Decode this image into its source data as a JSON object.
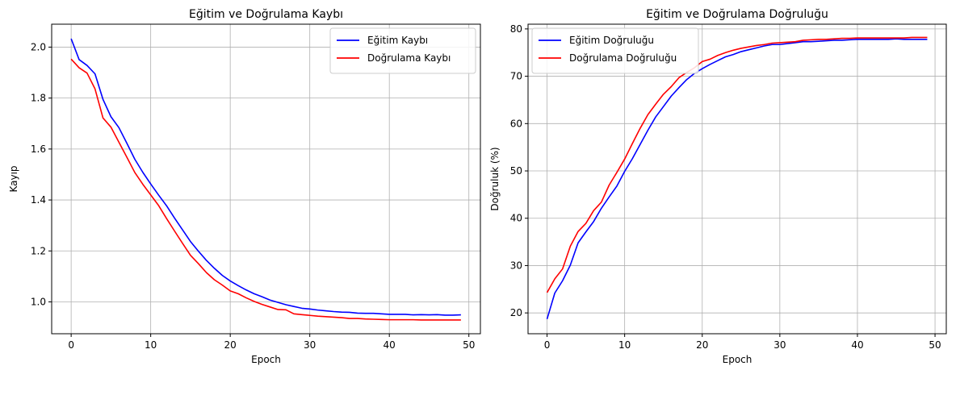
{
  "chart_data": [
    {
      "type": "line",
      "title": "Eğitim ve Doğrulama Kaybı",
      "xlabel": "Epoch",
      "ylabel": "Kayıp",
      "xlim": [
        -2.45,
        51.45
      ],
      "ylim": [
        0.875,
        2.09
      ],
      "xticks": [
        0,
        10,
        20,
        30,
        40,
        50
      ],
      "yticks": [
        1.0,
        1.2,
        1.4,
        1.6,
        1.8,
        2.0
      ],
      "ytick_labels": [
        "1.0",
        "1.2",
        "1.4",
        "1.6",
        "1.8",
        "2.0"
      ],
      "grid": true,
      "legend_position": "top-right",
      "x": [
        0,
        1,
        2,
        3,
        4,
        5,
        6,
        7,
        8,
        9,
        10,
        11,
        12,
        13,
        14,
        15,
        16,
        17,
        18,
        19,
        20,
        21,
        22,
        23,
        24,
        25,
        26,
        27,
        28,
        29,
        30,
        31,
        32,
        33,
        34,
        35,
        36,
        37,
        38,
        39,
        40,
        41,
        42,
        43,
        44,
        45,
        46,
        47,
        48,
        49
      ],
      "series": [
        {
          "name": "Eğitim Kaybı",
          "color": "#0000ff",
          "values": [
            2.033,
            1.951,
            1.928,
            1.895,
            1.795,
            1.727,
            1.684,
            1.623,
            1.56,
            1.509,
            1.463,
            1.419,
            1.377,
            1.329,
            1.283,
            1.237,
            1.199,
            1.163,
            1.132,
            1.104,
            1.082,
            1.064,
            1.047,
            1.032,
            1.02,
            1.007,
            0.998,
            0.989,
            0.982,
            0.975,
            0.972,
            0.968,
            0.965,
            0.962,
            0.96,
            0.959,
            0.956,
            0.955,
            0.955,
            0.953,
            0.951,
            0.951,
            0.951,
            0.949,
            0.95,
            0.949,
            0.95,
            0.948,
            0.948,
            0.949
          ]
        },
        {
          "name": "Doğrulama Kaybı",
          "color": "#ff0000",
          "values": [
            1.953,
            1.919,
            1.898,
            1.836,
            1.722,
            1.686,
            1.627,
            1.568,
            1.508,
            1.462,
            1.42,
            1.378,
            1.327,
            1.278,
            1.23,
            1.183,
            1.15,
            1.115,
            1.087,
            1.066,
            1.043,
            1.032,
            1.016,
            1.002,
            0.99,
            0.98,
            0.97,
            0.969,
            0.953,
            0.95,
            0.947,
            0.944,
            0.942,
            0.94,
            0.938,
            0.935,
            0.935,
            0.933,
            0.932,
            0.931,
            0.93,
            0.93,
            0.93,
            0.93,
            0.929,
            0.929,
            0.929,
            0.929,
            0.929,
            0.929
          ]
        }
      ]
    },
    {
      "type": "line",
      "title": "Eğitim ve Doğrulama Doğruluğu",
      "xlabel": "Epoch",
      "ylabel": "Doğruluk (%)",
      "xlim": [
        -2.45,
        51.45
      ],
      "ylim": [
        15.6,
        81.0
      ],
      "xticks": [
        0,
        10,
        20,
        30,
        40,
        50
      ],
      "yticks": [
        20,
        30,
        40,
        50,
        60,
        70,
        80
      ],
      "ytick_labels": [
        "20",
        "30",
        "40",
        "50",
        "60",
        "70",
        "80"
      ],
      "grid": true,
      "legend_position": "top-left",
      "x": [
        0,
        1,
        2,
        3,
        4,
        5,
        6,
        7,
        8,
        9,
        10,
        11,
        12,
        13,
        14,
        15,
        16,
        17,
        18,
        19,
        20,
        21,
        22,
        23,
        24,
        25,
        26,
        27,
        28,
        29,
        30,
        31,
        32,
        33,
        34,
        35,
        36,
        37,
        38,
        39,
        40,
        41,
        42,
        43,
        44,
        45,
        46,
        47,
        48,
        49
      ],
      "series": [
        {
          "name": "Eğitim Doğruluğu",
          "color": "#0000ff",
          "values": [
            18.7,
            24.2,
            26.8,
            30.1,
            34.8,
            37.1,
            39.3,
            42.1,
            44.5,
            46.8,
            49.9,
            52.6,
            55.6,
            58.6,
            61.4,
            63.6,
            65.8,
            67.6,
            69.3,
            70.6,
            71.6,
            72.5,
            73.3,
            74.1,
            74.6,
            75.2,
            75.6,
            76.0,
            76.4,
            76.7,
            76.7,
            76.9,
            77.1,
            77.3,
            77.3,
            77.4,
            77.5,
            77.6,
            77.6,
            77.7,
            77.8,
            77.8,
            77.8,
            77.8,
            77.8,
            77.9,
            77.8,
            77.8,
            77.8,
            77.8
          ]
        },
        {
          "name": "Doğrulama Doğruluğu",
          "color": "#ff0000",
          "values": [
            24.3,
            27.2,
            29.3,
            34.1,
            37.2,
            38.9,
            41.6,
            43.4,
            47.0,
            49.7,
            52.5,
            55.8,
            59.0,
            61.9,
            64.1,
            66.2,
            67.8,
            69.7,
            70.8,
            71.8,
            73.1,
            73.6,
            74.4,
            75.0,
            75.5,
            75.9,
            76.2,
            76.5,
            76.7,
            77.0,
            77.1,
            77.2,
            77.3,
            77.6,
            77.7,
            77.8,
            77.8,
            77.9,
            78.0,
            78.0,
            78.1,
            78.1,
            78.1,
            78.1,
            78.1,
            78.1,
            78.1,
            78.2,
            78.2,
            78.2
          ]
        }
      ]
    }
  ]
}
